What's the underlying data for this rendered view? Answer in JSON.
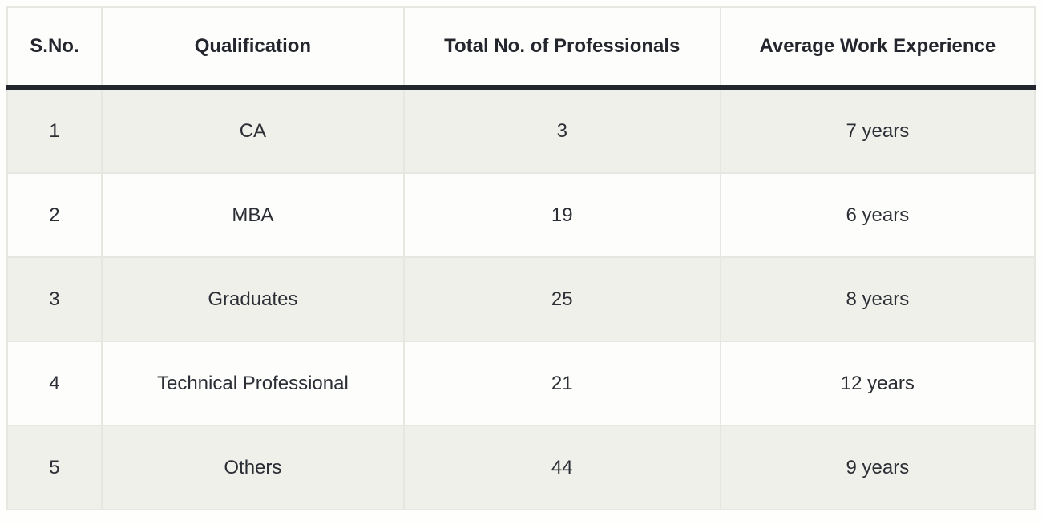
{
  "chart_data": {
    "type": "table",
    "title": "",
    "columns": [
      "S.No.",
      "Qualification",
      "Total No. of Professionals",
      "Average Work Experience"
    ],
    "rows": [
      [
        "1",
        "CA",
        "3",
        "7 years"
      ],
      [
        "2",
        "MBA",
        "19",
        "6 years"
      ],
      [
        "3",
        "Graduates",
        "25",
        "8 years"
      ],
      [
        "4",
        "Technical Professional",
        "21",
        "12 years"
      ],
      [
        "5",
        "Others",
        "44",
        "9 years"
      ]
    ],
    "qualifications": [
      "CA",
      "MBA",
      "Graduates",
      "Technical Professional",
      "Others"
    ],
    "total_professionals": [
      3,
      19,
      25,
      21,
      44
    ],
    "average_work_experience_years": [
      7,
      6,
      8,
      12,
      9
    ]
  },
  "colors": {
    "header_rule": "#24262e",
    "alt_row_bg": "#f0f0eb",
    "row_bg": "#fdfdfb",
    "cell_border": "#e7e7e2",
    "text": "#2b2e35"
  }
}
